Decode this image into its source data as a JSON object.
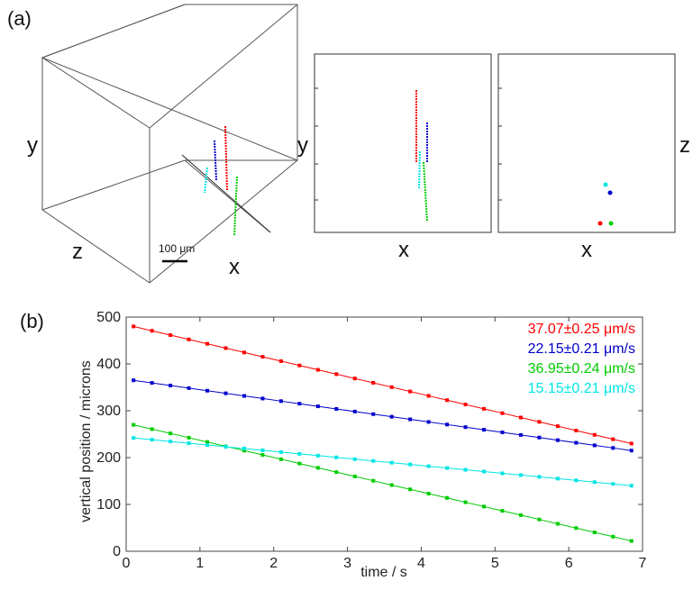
{
  "panel_a": {
    "label": "(a)",
    "cube_axes": {
      "y": "y",
      "z": "z",
      "x": "x"
    },
    "scale_bar": "100 μm",
    "view_xy": {
      "ylabel": "y",
      "xlabel": "x"
    },
    "view_xz": {
      "ylabel": "z",
      "xlabel": "x"
    }
  },
  "panel_b": {
    "label": "(b)"
  },
  "chart_data": {
    "type": "line",
    "title": "",
    "xlabel": "time / s",
    "ylabel": "vertical position / microns",
    "xlim": [
      0,
      7
    ],
    "ylim": [
      0,
      500
    ],
    "xticks": [
      0,
      1,
      2,
      3,
      4,
      5,
      6,
      7
    ],
    "yticks": [
      0,
      100,
      200,
      300,
      400,
      500
    ],
    "legend_placement": "top-right",
    "series": [
      {
        "label": "37.07±0.25 μm/s",
        "color": "#ff0000",
        "t0": 0.1,
        "t1": 6.85,
        "y0": 480,
        "y1": 230,
        "n": 28
      },
      {
        "label": "22.15±0.21 μm/s",
        "color": "#0000cc",
        "t0": 0.1,
        "t1": 6.85,
        "y0": 365,
        "y1": 215,
        "n": 28
      },
      {
        "label": "36.95±0.24 μm/s",
        "color": "#00cc00",
        "t0": 0.1,
        "t1": 6.85,
        "y0": 270,
        "y1": 22,
        "n": 28
      },
      {
        "label": "15.15±0.21 μm/s",
        "color": "#00e5e5",
        "t0": 0.1,
        "t1": 6.85,
        "y0": 242,
        "y1": 140,
        "n": 28
      }
    ]
  }
}
